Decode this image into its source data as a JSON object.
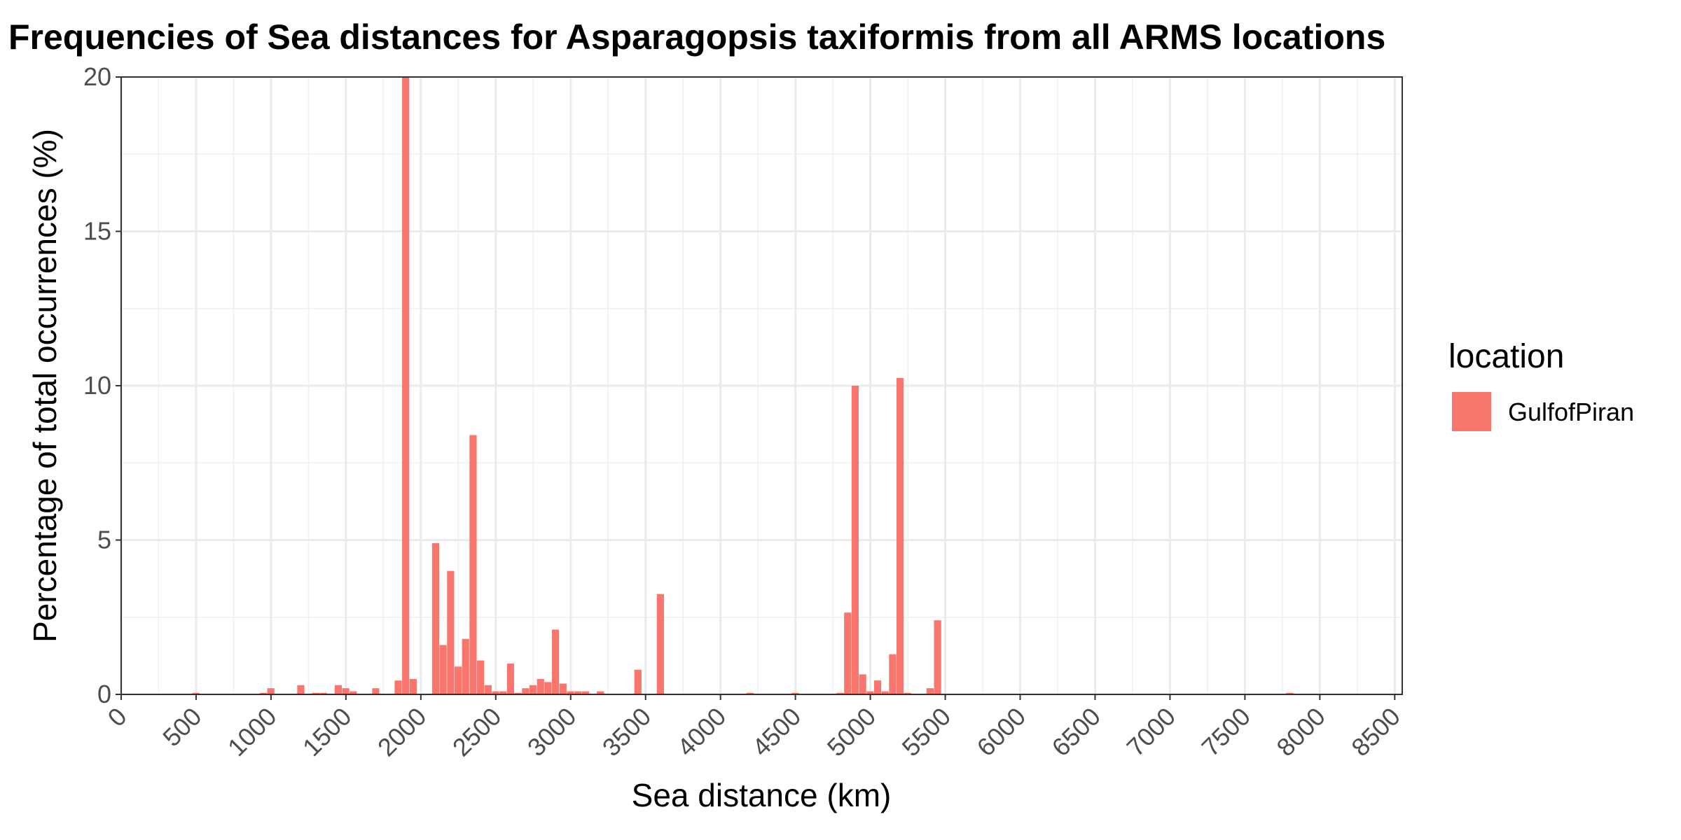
{
  "chart_data": {
    "type": "bar",
    "title": "Frequencies of Sea distances for Asparagopsis taxiformis from all ARMS locations",
    "xlabel": "Sea distance (km)",
    "ylabel": "Percentage of total occurrences (%)",
    "xlim": [
      0,
      8550
    ],
    "ylim": [
      0,
      20
    ],
    "bin_width": 50,
    "x_ticks": [
      0,
      500,
      1000,
      1500,
      2000,
      2500,
      3000,
      3500,
      4000,
      4500,
      5000,
      5500,
      6000,
      6500,
      7000,
      7500,
      8000,
      8500
    ],
    "x_tick_labels": [
      "0",
      "500",
      "1000",
      "1500",
      "2000",
      "2500",
      "3000",
      "3500",
      "4000",
      "4500",
      "5000",
      "5500",
      "6000",
      "6500",
      "7000",
      "7500",
      "8000",
      "8500"
    ],
    "y_ticks": [
      0,
      5,
      10,
      15,
      20
    ],
    "y_tick_labels": [
      "0",
      "5",
      "10",
      "15",
      "20"
    ],
    "grid": true,
    "legend": {
      "title": "location",
      "position": "right",
      "entries": [
        "GulfofPiran"
      ]
    },
    "series": [
      {
        "name": "GulfofPiran",
        "color": "#F8766D",
        "x": [
          500,
          950,
          1000,
          1200,
          1300,
          1350,
          1450,
          1500,
          1550,
          1700,
          1850,
          1900,
          1950,
          2100,
          2150,
          2200,
          2250,
          2300,
          2350,
          2400,
          2450,
          2500,
          2550,
          2600,
          2650,
          2700,
          2750,
          2800,
          2850,
          2900,
          2950,
          3000,
          3050,
          3100,
          3200,
          3450,
          3600,
          4200,
          4500,
          4800,
          4850,
          4900,
          4950,
          5000,
          5050,
          5100,
          5150,
          5200,
          5250,
          5400,
          5450,
          7800
        ],
        "values": [
          0.05,
          0.05,
          0.2,
          0.3,
          0.05,
          0.05,
          0.3,
          0.2,
          0.1,
          0.2,
          0.45,
          20.0,
          0.5,
          4.9,
          1.6,
          4.0,
          0.9,
          1.8,
          8.4,
          1.1,
          0.3,
          0.1,
          0.1,
          1.0,
          0.05,
          0.2,
          0.3,
          0.5,
          0.4,
          2.1,
          0.35,
          0.1,
          0.1,
          0.1,
          0.1,
          0.8,
          3.25,
          0.05,
          0.05,
          0.05,
          2.65,
          10.0,
          0.65,
          0.1,
          0.45,
          0.1,
          1.3,
          10.25,
          0.05,
          0.2,
          2.4,
          0.05
        ]
      }
    ]
  }
}
